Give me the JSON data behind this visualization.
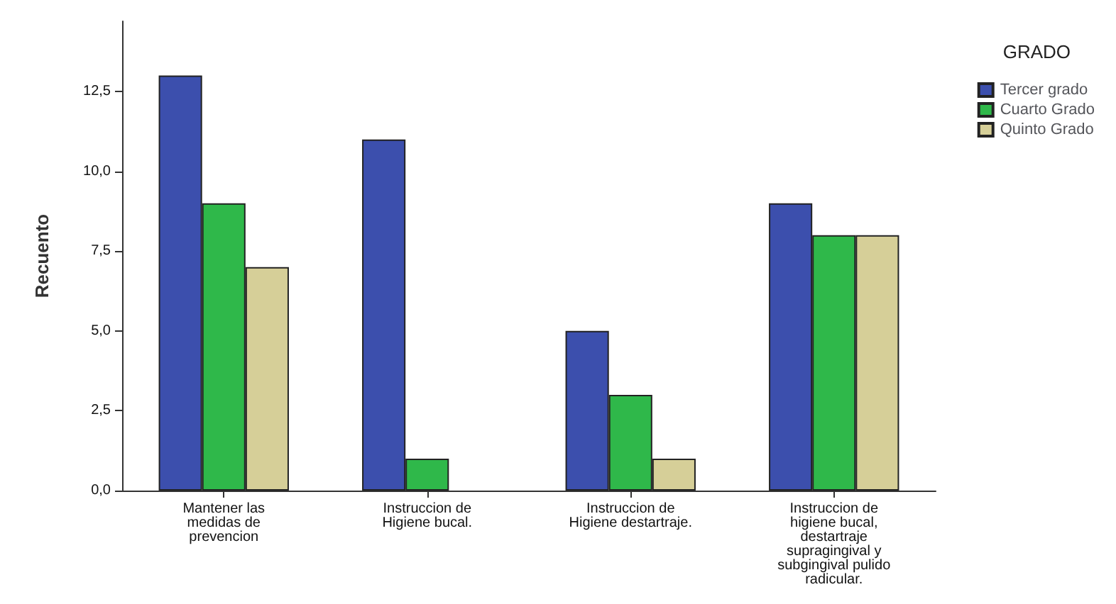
{
  "chart_data": {
    "type": "bar",
    "ylabel": "Recuento",
    "legend_title": "GRADO",
    "categories": [
      "Mantener las\nmedidas de\nprevencion",
      "Instruccion de\nHigiene bucal.",
      "Instruccion de\nHigiene destartraje.",
      "Instruccion de\nhigiene bucal,\ndestartraje\nsupragingival y\nsubgingival pulido\nradicular."
    ],
    "series": [
      {
        "name": "Tercer grado",
        "color": "#3c4fad",
        "values": [
          13,
          11,
          5,
          9
        ]
      },
      {
        "name": "Cuarto Grado",
        "color": "#2fb84a",
        "values": [
          9,
          1,
          3,
          8
        ]
      },
      {
        "name": "Quinto Grado",
        "color": "#d6cf98",
        "values": [
          7,
          null,
          1,
          8
        ]
      }
    ],
    "ylim": [
      0,
      14.7
    ],
    "yticks": [
      {
        "value": 0,
        "label": "0,0"
      },
      {
        "value": 2.5,
        "label": "2,5"
      },
      {
        "value": 5,
        "label": "5,0"
      },
      {
        "value": 7.5,
        "label": "7,5"
      },
      {
        "value": 10,
        "label": "10,0"
      },
      {
        "value": 12.5,
        "label": "12,5"
      }
    ],
    "grid": false,
    "legend": "top right"
  }
}
